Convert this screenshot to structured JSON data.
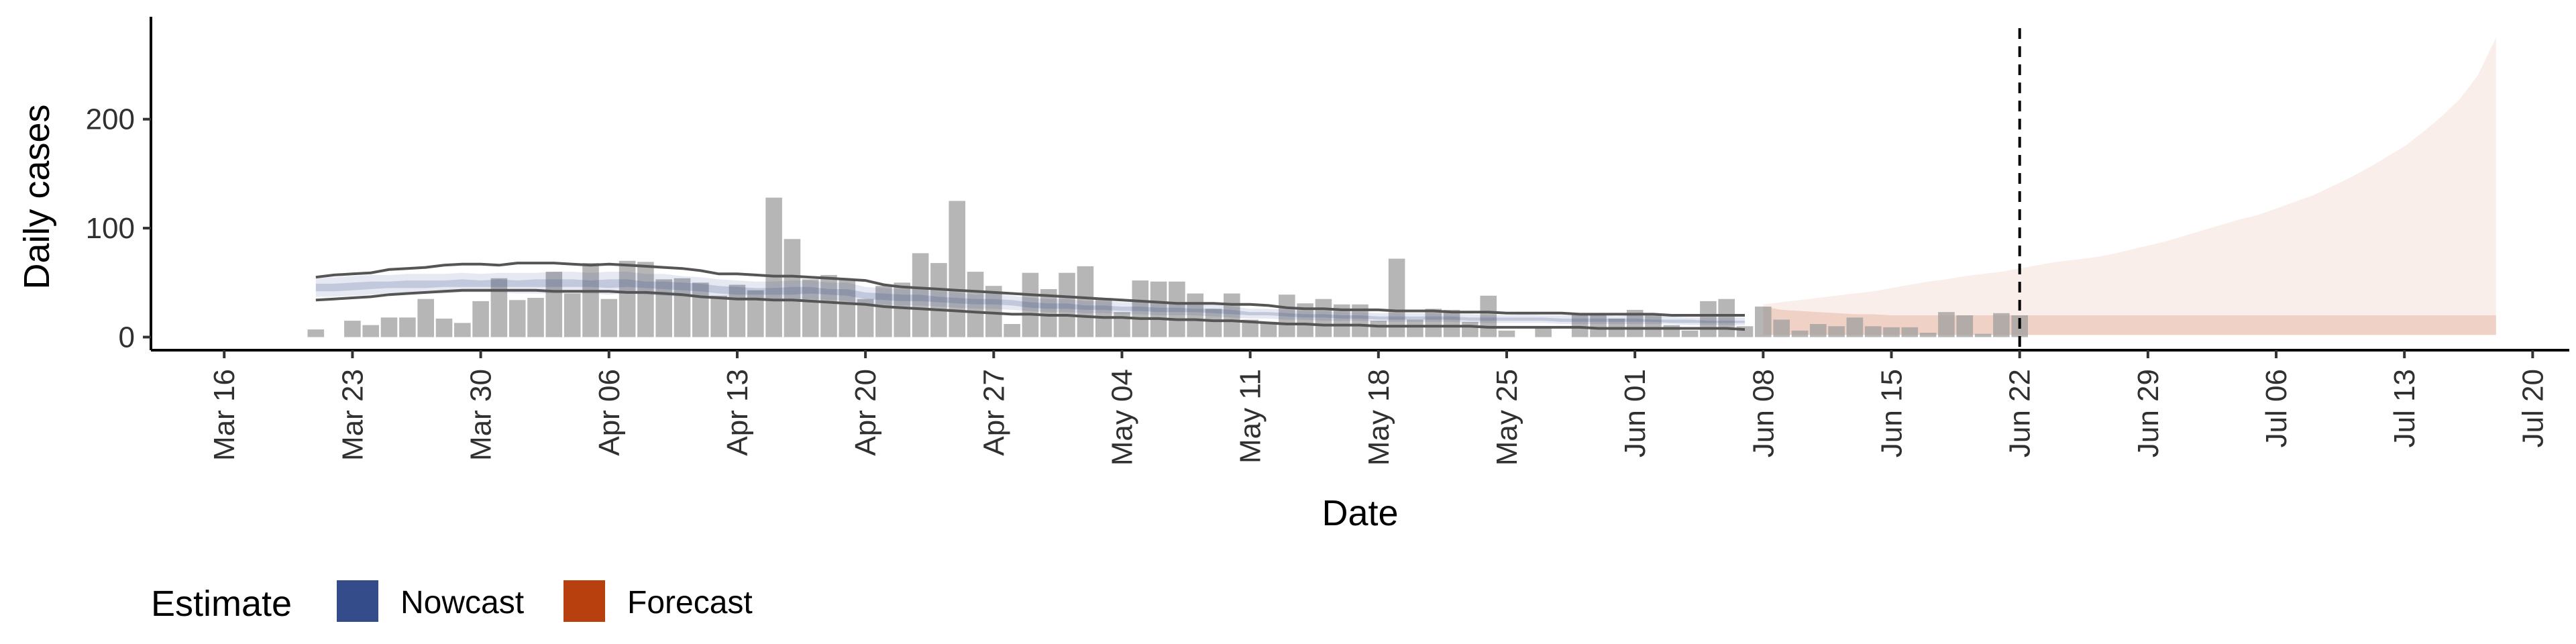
{
  "chart_data": {
    "type": "bar",
    "xlabel": "Date",
    "ylabel": "Daily cases",
    "ylim": [
      -12,
      294
    ],
    "y_ticks": [
      0,
      100,
      200
    ],
    "x_range": [
      "2020-03-12",
      "2020-07-22"
    ],
    "x_ticks": [
      "Mar 16",
      "Mar 23",
      "Mar 30",
      "Apr 06",
      "Apr 13",
      "Apr 20",
      "Apr 27",
      "May 04",
      "May 11",
      "May 18",
      "May 25",
      "Jun 01",
      "Jun 08",
      "Jun 15",
      "Jun 22",
      "Jun 29",
      "Jul 06",
      "Jul 13",
      "Jul 20"
    ],
    "x_tick_dates": [
      "2020-03-16",
      "2020-03-23",
      "2020-03-30",
      "2020-04-06",
      "2020-04-13",
      "2020-04-20",
      "2020-04-27",
      "2020-05-04",
      "2020-05-11",
      "2020-05-18",
      "2020-05-25",
      "2020-06-01",
      "2020-06-08",
      "2020-06-15",
      "2020-06-22",
      "2020-06-29",
      "2020-07-06",
      "2020-07-13",
      "2020-07-20"
    ],
    "forecast_start_line": "2020-06-22",
    "grid": false,
    "legend": {
      "title": "Estimate",
      "position": "bottom-left",
      "items": [
        {
          "label": "Nowcast",
          "color": "#354C8A"
        },
        {
          "label": "Forecast",
          "color": "#B8400E"
        }
      ]
    },
    "bars": {
      "color": "#9E9E9E",
      "start_date": "2020-03-21",
      "values": [
        7,
        0,
        15,
        11,
        18,
        18,
        35,
        17,
        13,
        33,
        54,
        34,
        36,
        60,
        40,
        68,
        35,
        70,
        69,
        53,
        54,
        50,
        38,
        48,
        43,
        128,
        90,
        53,
        57,
        53,
        35,
        47,
        50,
        77,
        68,
        125,
        60,
        47,
        12,
        59,
        44,
        59,
        65,
        35,
        23,
        52,
        51,
        51,
        40,
        26,
        40,
        16,
        14,
        39,
        31,
        35,
        30,
        30,
        15,
        72,
        16,
        26,
        25,
        14,
        38,
        6,
        0,
        10,
        0,
        21,
        20,
        17,
        25,
        20,
        11,
        6,
        33,
        35,
        10,
        28,
        16,
        6,
        12,
        10,
        18,
        10,
        9,
        9,
        4,
        23,
        20,
        3,
        22,
        20
      ]
    },
    "nowcast": {
      "color": "#354C8A",
      "start_date": "2020-03-21",
      "end_date": "2020-06-07",
      "upper_90": [
        54,
        55,
        56,
        57,
        57,
        58,
        58,
        58,
        59,
        58,
        59,
        59,
        59,
        60,
        60,
        59,
        60,
        60,
        58,
        58,
        56,
        55,
        53,
        52,
        51,
        51,
        52,
        52,
        50,
        50,
        46,
        45,
        44,
        44,
        42,
        41,
        39,
        40,
        38,
        36,
        35,
        35,
        33,
        33,
        32,
        32,
        31,
        31,
        30,
        30,
        28,
        26,
        26,
        25,
        24,
        24,
        23,
        23,
        22,
        22,
        22,
        22,
        21,
        21,
        20,
        20,
        21,
        20,
        20,
        20,
        20,
        19,
        20,
        19,
        19,
        18,
        18,
        18,
        18
      ],
      "lower_90": [
        37,
        37,
        38,
        39,
        40,
        40,
        40,
        40,
        41,
        41,
        41,
        40,
        40,
        40,
        40,
        40,
        39,
        40,
        39,
        38,
        37,
        36,
        35,
        34,
        34,
        34,
        34,
        35,
        34,
        33,
        31,
        30,
        29,
        29,
        28,
        27,
        26,
        26,
        25,
        24,
        23,
        23,
        22,
        22,
        21,
        21,
        20,
        20,
        20,
        19,
        18,
        17,
        17,
        16,
        16,
        15,
        15,
        15,
        14,
        14,
        14,
        14,
        14,
        13,
        13,
        13,
        13,
        13,
        12,
        12,
        12,
        12,
        12,
        12,
        12,
        11,
        11,
        11,
        11
      ],
      "upper_50": [
        49,
        49,
        50,
        51,
        51,
        52,
        52,
        52,
        53,
        52,
        53,
        52,
        53,
        53,
        53,
        52,
        53,
        53,
        51,
        51,
        50,
        49,
        47,
        46,
        45,
        45,
        46,
        46,
        44,
        44,
        41,
        40,
        39,
        39,
        37,
        36,
        35,
        35,
        34,
        32,
        31,
        31,
        29,
        29,
        28,
        28,
        27,
        27,
        26,
        26,
        25,
        23,
        23,
        22,
        21,
        21,
        20,
        20,
        19,
        19,
        19,
        19,
        19,
        18,
        18,
        18,
        18,
        18,
        17,
        17,
        17,
        17,
        17,
        16,
        16,
        16,
        15,
        15,
        15
      ],
      "lower_50": [
        42,
        42,
        43,
        44,
        45,
        45,
        45,
        46,
        46,
        46,
        46,
        46,
        46,
        46,
        46,
        46,
        45,
        46,
        45,
        44,
        43,
        42,
        40,
        39,
        39,
        39,
        39,
        40,
        39,
        38,
        35,
        34,
        33,
        33,
        32,
        31,
        30,
        30,
        29,
        27,
        26,
        26,
        25,
        25,
        24,
        24,
        23,
        23,
        23,
        22,
        21,
        20,
        20,
        19,
        18,
        18,
        17,
        17,
        16,
        16,
        16,
        16,
        16,
        15,
        15,
        15,
        15,
        15,
        14,
        14,
        14,
        14,
        14,
        14,
        13,
        13,
        13,
        13,
        13
      ],
      "line_upper": [
        55,
        57,
        58,
        59,
        62,
        63,
        64,
        66,
        67,
        67,
        66,
        68,
        68,
        68,
        67,
        66,
        67,
        66,
        65,
        64,
        63,
        61,
        58,
        58,
        57,
        56,
        56,
        55,
        54,
        53,
        52,
        48,
        46,
        45,
        44,
        43,
        42,
        41,
        40,
        39,
        38,
        37,
        36,
        35,
        34,
        33,
        32,
        31,
        31,
        31,
        30,
        30,
        29,
        27,
        26,
        26,
        25,
        25,
        25,
        24,
        24,
        24,
        23,
        23,
        23,
        22,
        22,
        22,
        22,
        21,
        21,
        21,
        21,
        21,
        20,
        20,
        20,
        20,
        20
      ],
      "line_lower": [
        34,
        35,
        36,
        37,
        39,
        40,
        41,
        42,
        43,
        43,
        43,
        43,
        43,
        42,
        42,
        42,
        42,
        41,
        41,
        40,
        39,
        37,
        36,
        35,
        35,
        34,
        34,
        33,
        32,
        31,
        30,
        28,
        27,
        26,
        25,
        24,
        23,
        22,
        21,
        21,
        20,
        20,
        19,
        18,
        18,
        17,
        17,
        16,
        16,
        15,
        15,
        14,
        13,
        12,
        12,
        11,
        11,
        11,
        10,
        10,
        10,
        10,
        10,
        10,
        9,
        9,
        9,
        9,
        9,
        9,
        8,
        8,
        8,
        8,
        8,
        8,
        8,
        8,
        7
      ]
    },
    "forecast": {
      "color": "#B8400E",
      "start_date": "2020-06-08",
      "end_date": "2020-07-18",
      "inner_lower": [
        2,
        2,
        2,
        2,
        2,
        2,
        2,
        2,
        2,
        2,
        2,
        2,
        2,
        2,
        2,
        2,
        2,
        2,
        2,
        2,
        2,
        2,
        2,
        2,
        2,
        2,
        2,
        2,
        2,
        2,
        2,
        2,
        2,
        2,
        2,
        2,
        2,
        2,
        2,
        2,
        2
      ],
      "inner_upper": [
        28,
        25,
        24,
        23,
        22,
        21,
        21,
        20,
        20,
        20,
        20,
        20,
        20,
        20,
        20,
        20,
        20,
        20,
        20,
        20,
        20,
        20,
        20,
        20,
        20,
        20,
        20,
        20,
        20,
        20,
        20,
        20,
        20,
        20,
        20,
        20,
        20,
        20,
        20,
        20,
        20
      ],
      "outer_upper": [
        30,
        32,
        34,
        36,
        38,
        40,
        42,
        45,
        48,
        51,
        53,
        56,
        58,
        60,
        63,
        66,
        69,
        71,
        73,
        76,
        80,
        84,
        88,
        93,
        98,
        103,
        108,
        112,
        118,
        124,
        130,
        138,
        146,
        155,
        165,
        175,
        188,
        202,
        218,
        240,
        275
      ]
    }
  }
}
